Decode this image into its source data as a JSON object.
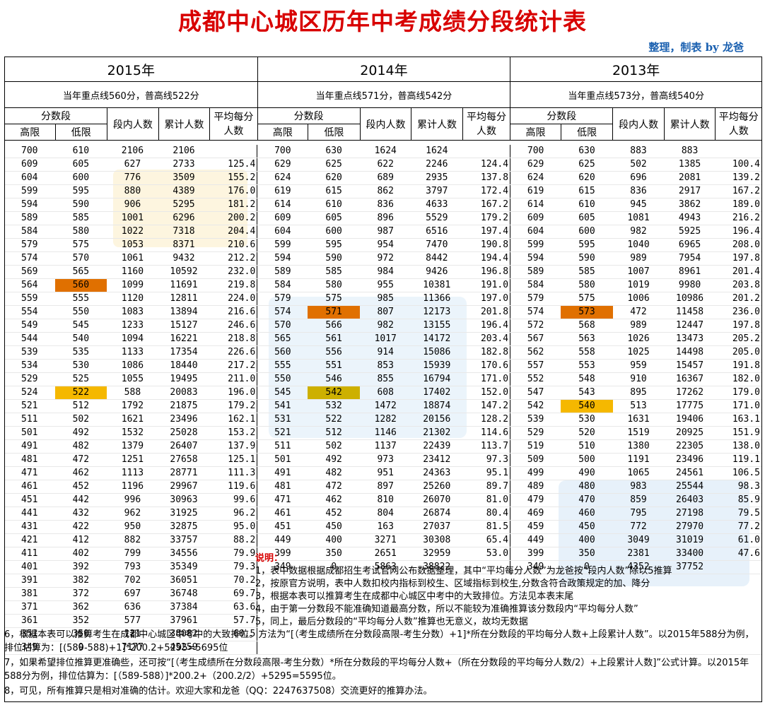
{
  "title": "成都中心城区历年中考成绩分段统计表",
  "credit": "整理，制表 by 龙爸",
  "headers": {
    "score_band": "分数段",
    "high": "高限",
    "low": "低限",
    "in_band": "段内人数",
    "cumulative": "累计人数",
    "avg_per_point": "平均每分人数"
  },
  "years": [
    {
      "year": "2015年",
      "line": "当年重点线560分，普高线522分"
    },
    {
      "year": "2014年",
      "line": "当年重点线571分，普高线542分"
    },
    {
      "year": "2013年",
      "line": "当年重点线573分，普高线540分"
    }
  ],
  "rows2015": [
    [
      "700",
      "610",
      "2106",
      "2106",
      ""
    ],
    [
      "609",
      "605",
      "627",
      "2733",
      "125.4"
    ],
    [
      "604",
      "600",
      "776",
      "3509",
      "155.2"
    ],
    [
      "599",
      "595",
      "880",
      "4389",
      "176.0"
    ],
    [
      "594",
      "590",
      "906",
      "5295",
      "181.2"
    ],
    [
      "589",
      "585",
      "1001",
      "6296",
      "200.2"
    ],
    [
      "584",
      "580",
      "1022",
      "7318",
      "204.4"
    ],
    [
      "579",
      "575",
      "1053",
      "8371",
      "210.6"
    ],
    [
      "574",
      "570",
      "1061",
      "9432",
      "212.2"
    ],
    [
      "569",
      "565",
      "1160",
      "10592",
      "232.0"
    ],
    [
      "564",
      "560",
      "1099",
      "11691",
      "219.8"
    ],
    [
      "559",
      "555",
      "1120",
      "12811",
      "224.0"
    ],
    [
      "554",
      "550",
      "1083",
      "13894",
      "216.6"
    ],
    [
      "549",
      "545",
      "1233",
      "15127",
      "246.6"
    ],
    [
      "544",
      "540",
      "1094",
      "16221",
      "218.8"
    ],
    [
      "539",
      "535",
      "1133",
      "17354",
      "226.6"
    ],
    [
      "534",
      "530",
      "1086",
      "18440",
      "217.2"
    ],
    [
      "529",
      "525",
      "1055",
      "19495",
      "211.0"
    ],
    [
      "524",
      "522",
      "588",
      "20083",
      "196.0"
    ],
    [
      "521",
      "512",
      "1792",
      "21875",
      "179.2"
    ],
    [
      "511",
      "502",
      "1621",
      "23496",
      "162.1"
    ],
    [
      "501",
      "492",
      "1532",
      "25028",
      "153.2"
    ],
    [
      "491",
      "482",
      "1379",
      "26407",
      "137.9"
    ],
    [
      "481",
      "472",
      "1251",
      "27658",
      "125.1"
    ],
    [
      "471",
      "462",
      "1113",
      "28771",
      "111.3"
    ],
    [
      "461",
      "452",
      "1196",
      "29967",
      "119.6"
    ],
    [
      "451",
      "442",
      "996",
      "30963",
      "99.6"
    ],
    [
      "441",
      "432",
      "962",
      "31925",
      "96.2"
    ],
    [
      "431",
      "422",
      "950",
      "32875",
      "95.0"
    ],
    [
      "421",
      "412",
      "882",
      "33757",
      "88.2"
    ],
    [
      "411",
      "402",
      "799",
      "34556",
      "79.9"
    ],
    [
      "401",
      "392",
      "793",
      "35349",
      "79.3"
    ],
    [
      "391",
      "382",
      "702",
      "36051",
      "70.2"
    ],
    [
      "381",
      "372",
      "697",
      "36748",
      "69.7"
    ],
    [
      "371",
      "362",
      "636",
      "37384",
      "63.6"
    ],
    [
      "361",
      "352",
      "577",
      "37961",
      "57.7"
    ],
    [
      "351",
      "350",
      "121",
      "38082",
      "60.5"
    ],
    [
      "349",
      "0",
      "7177",
      "45259",
      ""
    ]
  ],
  "rows2014": [
    [
      "700",
      "630",
      "1624",
      "1624",
      ""
    ],
    [
      "629",
      "625",
      "622",
      "2246",
      "124.4"
    ],
    [
      "624",
      "620",
      "689",
      "2935",
      "137.8"
    ],
    [
      "619",
      "615",
      "862",
      "3797",
      "172.4"
    ],
    [
      "614",
      "610",
      "836",
      "4633",
      "167.2"
    ],
    [
      "609",
      "605",
      "896",
      "5529",
      "179.2"
    ],
    [
      "604",
      "600",
      "987",
      "6516",
      "197.4"
    ],
    [
      "599",
      "595",
      "954",
      "7470",
      "190.8"
    ],
    [
      "594",
      "590",
      "972",
      "8442",
      "194.4"
    ],
    [
      "589",
      "585",
      "984",
      "9426",
      "196.8"
    ],
    [
      "584",
      "580",
      "955",
      "10381",
      "191.0"
    ],
    [
      "579",
      "575",
      "985",
      "11366",
      "197.0"
    ],
    [
      "574",
      "571",
      "807",
      "12173",
      "201.8"
    ],
    [
      "570",
      "566",
      "982",
      "13155",
      "196.4"
    ],
    [
      "565",
      "561",
      "1017",
      "14172",
      "203.4"
    ],
    [
      "560",
      "556",
      "914",
      "15086",
      "182.8"
    ],
    [
      "555",
      "551",
      "853",
      "15939",
      "170.6"
    ],
    [
      "550",
      "546",
      "855",
      "16794",
      "171.0"
    ],
    [
      "545",
      "542",
      "608",
      "17402",
      "152.0"
    ],
    [
      "541",
      "532",
      "1472",
      "18874",
      "147.2"
    ],
    [
      "531",
      "522",
      "1282",
      "20156",
      "128.2"
    ],
    [
      "521",
      "512",
      "1146",
      "21302",
      "114.6"
    ],
    [
      "511",
      "502",
      "1137",
      "22439",
      "113.7"
    ],
    [
      "501",
      "492",
      "973",
      "23412",
      "97.3"
    ],
    [
      "491",
      "482",
      "951",
      "24363",
      "95.1"
    ],
    [
      "481",
      "472",
      "897",
      "25260",
      "89.7"
    ],
    [
      "471",
      "462",
      "810",
      "26070",
      "81.0"
    ],
    [
      "461",
      "452",
      "804",
      "26874",
      "80.4"
    ],
    [
      "451",
      "450",
      "163",
      "27037",
      "81.5"
    ],
    [
      "449",
      "400",
      "3271",
      "30308",
      "65.4"
    ],
    [
      "399",
      "350",
      "2651",
      "32959",
      "53.0"
    ],
    [
      "349",
      "0",
      "5863",
      "38822",
      ""
    ]
  ],
  "rows2013": [
    [
      "700",
      "630",
      "883",
      "883",
      ""
    ],
    [
      "629",
      "625",
      "502",
      "1385",
      "100.4"
    ],
    [
      "624",
      "620",
      "696",
      "2081",
      "139.2"
    ],
    [
      "619",
      "615",
      "836",
      "2917",
      "167.2"
    ],
    [
      "614",
      "610",
      "945",
      "3862",
      "189.0"
    ],
    [
      "609",
      "605",
      "1081",
      "4943",
      "216.2"
    ],
    [
      "604",
      "600",
      "982",
      "5925",
      "196.4"
    ],
    [
      "599",
      "595",
      "1040",
      "6965",
      "208.0"
    ],
    [
      "594",
      "590",
      "989",
      "7954",
      "197.8"
    ],
    [
      "589",
      "585",
      "1007",
      "8961",
      "201.4"
    ],
    [
      "584",
      "580",
      "1019",
      "9980",
      "203.8"
    ],
    [
      "579",
      "575",
      "1006",
      "10986",
      "201.2"
    ],
    [
      "574",
      "573",
      "472",
      "11458",
      "236.0"
    ],
    [
      "572",
      "568",
      "989",
      "12447",
      "197.8"
    ],
    [
      "567",
      "563",
      "1026",
      "13473",
      "205.2"
    ],
    [
      "562",
      "558",
      "1025",
      "14498",
      "205.0"
    ],
    [
      "557",
      "553",
      "959",
      "15457",
      "191.8"
    ],
    [
      "552",
      "548",
      "910",
      "16367",
      "182.0"
    ],
    [
      "547",
      "543",
      "895",
      "17262",
      "179.0"
    ],
    [
      "542",
      "540",
      "513",
      "17775",
      "171.0"
    ],
    [
      "539",
      "530",
      "1631",
      "19406",
      "163.1"
    ],
    [
      "529",
      "520",
      "1519",
      "20925",
      "151.9"
    ],
    [
      "519",
      "510",
      "1380",
      "22305",
      "138.0"
    ],
    [
      "509",
      "500",
      "1191",
      "23496",
      "119.1"
    ],
    [
      "499",
      "490",
      "1065",
      "24561",
      "106.5"
    ],
    [
      "489",
      "480",
      "983",
      "25544",
      "98.3"
    ],
    [
      "479",
      "470",
      "859",
      "26403",
      "85.9"
    ],
    [
      "469",
      "460",
      "795",
      "27198",
      "79.5"
    ],
    [
      "459",
      "450",
      "772",
      "27970",
      "77.2"
    ],
    [
      "449",
      "400",
      "3049",
      "31019",
      "61.0"
    ],
    [
      "399",
      "350",
      "2381",
      "33400",
      "47.6"
    ],
    [
      "349",
      "0",
      "4352",
      "37752",
      ""
    ]
  ],
  "notes_title": "说明：",
  "notes": [
    "1，表中数据根据成都招生考试官网公布数据整理，其中“平均每分人数”为龙爸按“段内人数”除以5推算",
    "2，按原官方说明，表中人数扣校内指标到校生、区域指标到校生,分数含符合政策规定的加、降分",
    "3，根据本表可以推算考生在成都中心城区中考中的大致排位。方法见本表末尾",
    "4，由于第一分数段不能准确知道最高分数，所以不能较为准确推算该分数段内“平均每分人数”",
    "5，同上，最后分数段的“平均每分人数”推算也无意义，故均无数据"
  ],
  "footer": [
    "6，根据本表可以推算考生在成都中心城区中考中的大致排位。方法为“[（考生成绩所在分数段高限-考生分数）+1]*所在分数段的平均每分人数+上段累计人数”。以2015年588分为例，排位估算为：[(589-588)+1]*200.2+5295=5695位",
    "7，如果希望排位推算更准确些，还可按“[（考生成绩所在分数段高限-考生分数）*所在分数段的平均每分人数+（所在分数段的平均每分人数/2）+上段累计人数]”公式计算。以2015年588分为例，排位估算为：[（589-588）]*200.2+（200.2/2）+5295=5595位。",
    "8，可见，所有推算只是相对准确的估计。欢迎大家和龙爸（QQ：2247637508）交流更好的推算办法。"
  ],
  "highlights": {
    "color_orange": "#e07000",
    "color_yellow": "#f5b800"
  }
}
